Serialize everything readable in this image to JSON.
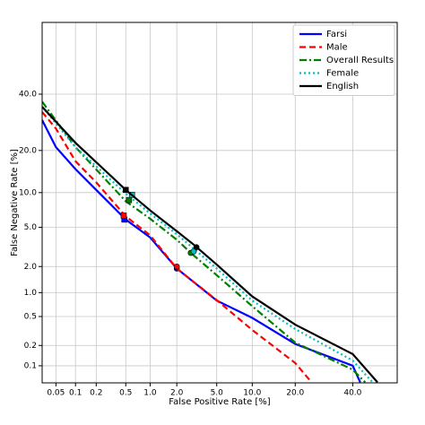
{
  "chart_data": {
    "type": "line",
    "xscale": "probit",
    "yscale": "probit",
    "x_label": "False Positive Rate [%]",
    "y_label": "False Negative Rate [%]",
    "xlim": [
      0.03,
      58
    ],
    "ylim": [
      0.054,
      69
    ],
    "xticks": [
      0.05,
      0.1,
      0.2,
      0.5,
      {
        "value": 1,
        "label": "1.0"
      },
      {
        "value": 2,
        "label": "2.0"
      },
      {
        "value": 5,
        "label": "5.0"
      },
      {
        "value": 10,
        "label": "10.0"
      },
      {
        "value": 20,
        "label": "20.0"
      },
      {
        "value": 40,
        "label": "40.0"
      }
    ],
    "yticks": [
      0.1,
      0.2,
      0.5,
      {
        "value": 1,
        "label": "1.0"
      },
      {
        "value": 2,
        "label": "2.0"
      },
      {
        "value": 5,
        "label": "5.0"
      },
      {
        "value": 10,
        "label": "10.0"
      },
      {
        "value": 20,
        "label": "20.0"
      },
      {
        "value": 40,
        "label": "40.0"
      }
    ],
    "grid": true,
    "legend": "upper right",
    "series": [
      {
        "name": "Farsi",
        "color": "#0000ff",
        "dash": "solid",
        "x": [
          0.03,
          0.05,
          0.1,
          0.2,
          0.5,
          1,
          2,
          5,
          10,
          20,
          40,
          43
        ],
        "values": [
          30,
          21,
          15,
          10.5,
          5.9,
          4.0,
          1.9,
          0.8,
          0.48,
          0.21,
          0.1,
          0.055
        ],
        "markers": [
          {
            "x": 0.48,
            "y": 5.9,
            "shape": "square"
          },
          {
            "x": 2.0,
            "y": 1.9,
            "shape": "circle"
          }
        ]
      },
      {
        "name": "Male",
        "color": "#ff0000",
        "dash": "dashed",
        "x": [
          0.03,
          0.05,
          0.1,
          0.2,
          0.5,
          1,
          2,
          5,
          10,
          20,
          25
        ],
        "values": [
          33,
          27,
          17,
          12,
          6.3,
          4.2,
          1.9,
          0.81,
          0.33,
          0.11,
          0.055
        ],
        "markers": [
          {
            "x": 0.47,
            "y": 6.4,
            "shape": "square"
          },
          {
            "x": 2.0,
            "y": 2.0,
            "shape": "circle"
          }
        ]
      },
      {
        "name": "Overall Results",
        "color": "#008000",
        "dash": "dashdot",
        "x": [
          0.03,
          0.1,
          0.5,
          1,
          2,
          2.8,
          5,
          10,
          20,
          40,
          45
        ],
        "values": [
          37,
          21,
          8.5,
          6.0,
          3.8,
          2.8,
          1.6,
          0.68,
          0.22,
          0.087,
          0.055
        ],
        "markers": [
          {
            "x": 0.55,
            "y": 8.7,
            "shape": "square"
          },
          {
            "x": 2.8,
            "y": 2.8,
            "shape": "circle"
          }
        ]
      },
      {
        "name": "Female",
        "color": "#00bfbf",
        "dash": "dotted",
        "x": [
          0.03,
          0.1,
          0.5,
          1,
          2,
          3,
          5,
          10,
          20,
          40,
          48
        ],
        "values": [
          35,
          21,
          9.8,
          6.7,
          4.3,
          3.1,
          1.9,
          0.8,
          0.34,
          0.12,
          0.055
        ],
        "markers": [
          {
            "x": 0.6,
            "y": 9.6,
            "shape": "square"
          },
          {
            "x": 3.0,
            "y": 2.9,
            "shape": "circle"
          }
        ]
      },
      {
        "name": "English",
        "color": "#000000",
        "dash": "solid",
        "x": [
          0.03,
          0.1,
          0.5,
          1,
          2,
          3,
          5,
          10,
          20,
          40,
          50
        ],
        "values": [
          35,
          22.3,
          10.5,
          7.1,
          4.6,
          3.4,
          2.1,
          0.9,
          0.39,
          0.15,
          0.055
        ],
        "markers": [
          {
            "x": 0.5,
            "y": 10.5,
            "shape": "square"
          },
          {
            "x": 3.2,
            "y": 3.2,
            "shape": "circle"
          }
        ]
      }
    ]
  }
}
